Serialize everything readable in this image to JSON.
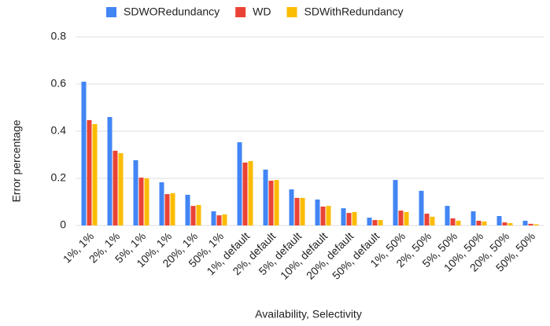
{
  "chart_data": {
    "type": "bar",
    "categories": [
      "1%, 1%",
      "2%, 1%",
      "5%, 1%",
      "10%, 1%",
      "20%, 1%",
      "50%, 1%",
      "1%, default",
      "2%, default",
      "5%, default",
      "10%, default",
      "20%, default",
      "50%, default",
      "1%, 50%",
      "2%, 50%",
      "5%, 50%",
      "10%, 50%",
      "20%, 50%",
      "50%, 50%"
    ],
    "series": [
      {
        "name": "SDWORedundancy",
        "color": "#4285f4",
        "values": [
          0.61,
          0.46,
          0.277,
          0.183,
          0.13,
          0.06,
          0.353,
          0.237,
          0.153,
          0.11,
          0.073,
          0.033,
          0.193,
          0.147,
          0.083,
          0.06,
          0.04,
          0.02
        ]
      },
      {
        "name": "WD",
        "color": "#ea4335",
        "values": [
          0.447,
          0.317,
          0.203,
          0.133,
          0.083,
          0.043,
          0.267,
          0.19,
          0.117,
          0.08,
          0.053,
          0.023,
          0.063,
          0.05,
          0.03,
          0.02,
          0.013,
          0.007
        ]
      },
      {
        "name": "SDWithRedundancy",
        "color": "#fbbc04",
        "values": [
          0.43,
          0.307,
          0.2,
          0.137,
          0.087,
          0.047,
          0.273,
          0.193,
          0.117,
          0.083,
          0.057,
          0.023,
          0.057,
          0.037,
          0.02,
          0.017,
          0.01,
          0.005
        ]
      }
    ],
    "x_label": "Availability, Selectivity",
    "y_label": "Error percentage",
    "ylim": [
      0,
      0.8
    ],
    "yticks": [
      0,
      0.2,
      0.4,
      0.6,
      0.8
    ],
    "grid": true,
    "legend": "top"
  }
}
